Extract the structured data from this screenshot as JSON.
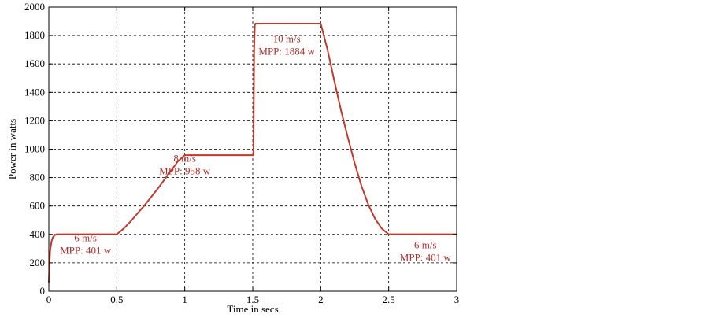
{
  "chart_data": {
    "type": "line",
    "title": "",
    "xlabel": "Time in secs",
    "ylabel": "Power in watts",
    "xlim": [
      0,
      3
    ],
    "ylim": [
      0,
      2000
    ],
    "x_ticks": [
      0,
      0.5,
      1,
      1.5,
      2,
      2.5,
      3
    ],
    "x_tick_labels": [
      "0",
      "0.5",
      "1",
      "1.5",
      "2",
      "2.5",
      "3"
    ],
    "y_ticks": [
      0,
      200,
      400,
      600,
      800,
      1000,
      1200,
      1400,
      1600,
      1800,
      2000
    ],
    "y_tick_labels": [
      "0",
      "200",
      "400",
      "600",
      "800",
      "1000",
      "1200",
      "1400",
      "1600",
      "1800",
      "2000"
    ],
    "grid": true,
    "grid_style": "dashed",
    "colors": {
      "series": "#c0392b",
      "annotation": "#b03030",
      "axis": "#000000",
      "grid": "#000000"
    },
    "series": [
      {
        "points": [
          [
            0.0,
            60
          ],
          [
            0.005,
            200
          ],
          [
            0.01,
            290
          ],
          [
            0.02,
            350
          ],
          [
            0.03,
            380
          ],
          [
            0.045,
            396
          ],
          [
            0.06,
            401
          ],
          [
            0.5,
            401
          ],
          [
            0.55,
            440
          ],
          [
            0.6,
            490
          ],
          [
            0.65,
            545
          ],
          [
            0.7,
            600
          ],
          [
            0.75,
            660
          ],
          [
            0.8,
            720
          ],
          [
            0.85,
            785
          ],
          [
            0.9,
            850
          ],
          [
            0.95,
            915
          ],
          [
            1.0,
            958
          ],
          [
            1.5,
            958
          ],
          [
            1.505,
            958
          ],
          [
            1.51,
            1700
          ],
          [
            1.515,
            1870
          ],
          [
            1.52,
            1884
          ],
          [
            2.0,
            1884
          ],
          [
            2.05,
            1700
          ],
          [
            2.1,
            1480
          ],
          [
            2.15,
            1270
          ],
          [
            2.2,
            1080
          ],
          [
            2.25,
            900
          ],
          [
            2.3,
            740
          ],
          [
            2.35,
            610
          ],
          [
            2.4,
            510
          ],
          [
            2.45,
            440
          ],
          [
            2.5,
            401
          ],
          [
            3.0,
            401
          ]
        ]
      }
    ],
    "annotations": [
      {
        "lines": [
          "6 m/s",
          "MPP: 401 w"
        ],
        "x": 0.27,
        "y": 330
      },
      {
        "lines": [
          "8 m/s",
          "MPP: 958 w"
        ],
        "x": 1.0,
        "y": 890
      },
      {
        "lines": [
          "10 m/s",
          "MPP: 1884 w"
        ],
        "x": 1.75,
        "y": 1730
      },
      {
        "lines": [
          "6 m/s",
          "MPP: 401 w"
        ],
        "x": 2.77,
        "y": 280
      }
    ]
  }
}
